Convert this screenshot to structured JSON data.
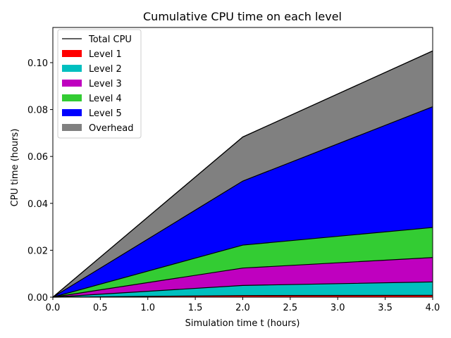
{
  "chart_data": {
    "type": "area",
    "stacked": true,
    "title": "Cumulative CPU time on each level",
    "xlabel": "Simulation time t (hours)",
    "ylabel": "CPU time (hours)",
    "xlim": [
      0.0,
      4.0
    ],
    "ylim": [
      0.0,
      0.115
    ],
    "x_ticks": [
      "0.0",
      "0.5",
      "1.0",
      "1.5",
      "2.0",
      "2.5",
      "3.0",
      "3.5",
      "4.0"
    ],
    "y_ticks": [
      "0.00",
      "0.02",
      "0.04",
      "0.06",
      "0.08",
      "0.10"
    ],
    "grid": false,
    "legend_position": "upper-left",
    "x": [
      0.0,
      2.0,
      4.0
    ],
    "series": [
      {
        "name": "Level 1",
        "color": "#ff0000",
        "values": [
          0.0,
          0.0007,
          0.0008
        ]
      },
      {
        "name": "Level 2",
        "color": "#00bfbf",
        "values": [
          0.0,
          0.0043,
          0.0057
        ]
      },
      {
        "name": "Level 3",
        "color": "#bf00bf",
        "values": [
          0.0,
          0.0074,
          0.0104
        ]
      },
      {
        "name": "Level 4",
        "color": "#33cc33",
        "values": [
          0.0,
          0.0098,
          0.0128
        ]
      },
      {
        "name": "Level 5",
        "color": "#0000ff",
        "values": [
          0.0,
          0.0273,
          0.0515
        ]
      },
      {
        "name": "Overhead",
        "color": "#808080",
        "values": [
          0.0,
          0.0188,
          0.0238
        ]
      }
    ],
    "total_line": {
      "name": "Total CPU",
      "color": "#000000",
      "values": [
        0.0,
        0.0683,
        0.105
      ]
    }
  }
}
